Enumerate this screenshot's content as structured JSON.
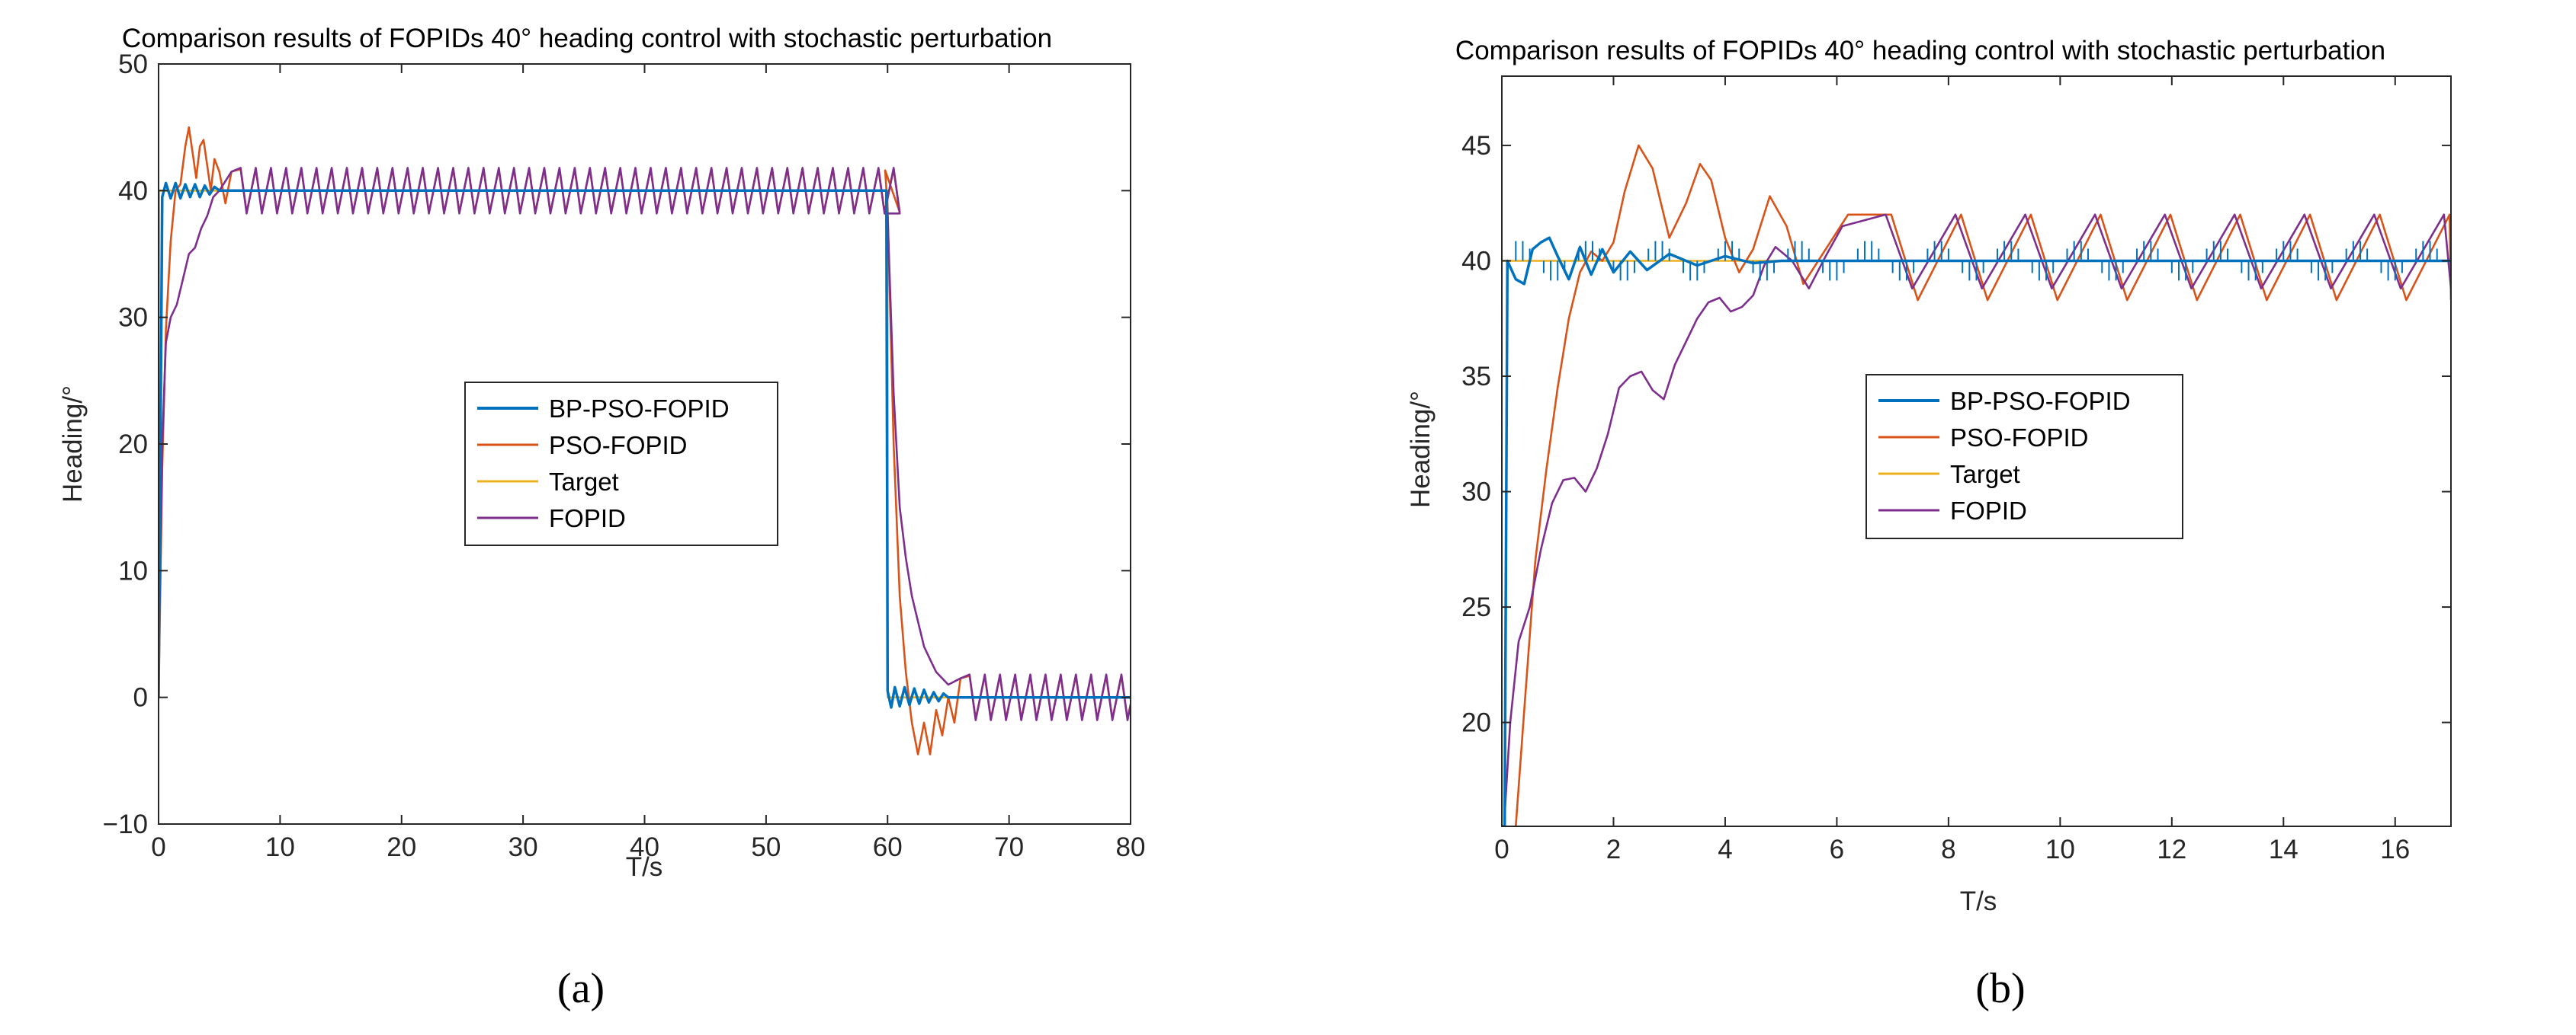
{
  "figure": {
    "panels": [
      "(a)",
      "(b)"
    ]
  },
  "colors": {
    "bp_pso_fopid": "#0072BD",
    "pso_fopid": "#D95319",
    "target": "#EDB120",
    "fopid": "#7E2F8E",
    "axis": "#262626",
    "grid": "#ffffff"
  },
  "chart_data": [
    {
      "type": "line",
      "panel_label": "a",
      "title": "Comparison results of FOPIDs 40° heading control with stochastic perturbation",
      "xlabel": "T/s",
      "ylabel": "Heading/°",
      "xlim": [
        0,
        80
      ],
      "ylim": [
        -10,
        50
      ],
      "xticks": [
        0,
        10,
        20,
        30,
        40,
        50,
        60,
        70,
        80
      ],
      "yticks": [
        -10,
        0,
        10,
        20,
        30,
        40,
        50
      ],
      "ytick_labels": [
        "−10",
        "0",
        "10",
        "20",
        "30",
        "40",
        "50"
      ],
      "grid": false,
      "legend_position": "center-right",
      "series": [
        {
          "name": "BP-PSO-FOPID",
          "color": "#0072BD",
          "x": [
            0,
            0.3,
            0.6,
            1.0,
            1.4,
            1.8,
            2.2,
            2.6,
            3.0,
            3.4,
            3.8,
            4.2,
            4.6,
            5.0,
            6.0,
            10,
            20,
            30,
            40,
            50,
            59.9,
            60.0,
            60.3,
            60.6,
            61.0,
            61.4,
            61.8,
            62.2,
            62.6,
            63.0,
            63.4,
            63.8,
            64.2,
            64.6,
            65.0,
            66,
            70,
            80
          ],
          "y": [
            0,
            39.5,
            40.6,
            39.4,
            40.6,
            39.4,
            40.5,
            39.5,
            40.5,
            39.5,
            40.4,
            39.7,
            40.3,
            40.0,
            40.0,
            40.0,
            40.0,
            40.0,
            40.0,
            40.0,
            40.0,
            0.5,
            -0.8,
            0.8,
            -0.7,
            0.8,
            -0.6,
            0.7,
            -0.5,
            0.6,
            -0.4,
            0.4,
            -0.3,
            0.3,
            0.0,
            0.0,
            0.0,
            0.0
          ]
        },
        {
          "name": "PSO-FOPID",
          "color": "#D95319",
          "x": [
            0,
            0.3,
            0.6,
            1.0,
            1.4,
            1.8,
            2.2,
            2.5,
            2.8,
            3.1,
            3.4,
            3.7,
            4.0,
            4.3,
            4.6,
            5.0,
            5.5,
            6.0,
            7,
            8,
            10,
            20,
            30,
            40,
            50,
            59.8,
            60.0,
            60.5,
            61.0,
            61.5,
            62.0,
            62.5,
            63.0,
            63.5,
            64.0,
            64.5,
            65.0,
            65.5,
            66.0,
            67,
            70,
            80
          ],
          "y": [
            0,
            18,
            29,
            36,
            40,
            40.5,
            43.5,
            45,
            43,
            41,
            43.5,
            44,
            42,
            40,
            42.5,
            41.5,
            39,
            41.5,
            39,
            41.5,
            38.6,
            41.6,
            38.6,
            41.6,
            38.6,
            41.6,
            38.6,
            20,
            8,
            2,
            -2,
            -4.5,
            -2,
            -4.5,
            -1,
            -3,
            0,
            -2,
            1.5,
            -1.5,
            1.8,
            -1.8
          ]
        },
        {
          "name": "Target",
          "color": "#EDB120",
          "x": [
            0,
            0.05,
            60,
            60.01,
            80
          ],
          "y": [
            0,
            40,
            40,
            0,
            0
          ]
        },
        {
          "name": "FOPID",
          "color": "#7E2F8E",
          "x": [
            0,
            0.3,
            0.6,
            1.0,
            1.5,
            2.0,
            2.5,
            3.0,
            3.5,
            4.0,
            4.5,
            5.0,
            6,
            8,
            10,
            20,
            30,
            40,
            50,
            59.8,
            60.0,
            60.5,
            61.0,
            61.5,
            62.0,
            62.5,
            63.0,
            63.5,
            64.0,
            65.0,
            66,
            70,
            80
          ],
          "y": [
            2,
            20,
            28,
            30,
            31,
            33,
            35,
            35.5,
            37,
            38,
            39.5,
            40,
            41.5,
            38.5,
            41.8,
            38.2,
            41.8,
            38.2,
            41.8,
            38.2,
            38.0,
            24,
            15,
            11,
            8,
            6,
            4,
            3,
            2,
            1,
            1.5,
            -1.5,
            1.5
          ]
        }
      ]
    },
    {
      "type": "line",
      "panel_label": "b",
      "title": "Comparison results of FOPIDs 40° heading control with stochastic perturbation",
      "xlabel": "T/s",
      "ylabel": "Heading/°",
      "xlim": [
        0,
        17
      ],
      "ylim": [
        15.5,
        48
      ],
      "xticks": [
        0,
        2,
        4,
        6,
        8,
        10,
        12,
        14,
        16
      ],
      "yticks": [
        20,
        25,
        30,
        35,
        40,
        45
      ],
      "ytick_labels": [
        "20",
        "25",
        "30",
        "35",
        "40",
        "45"
      ],
      "grid": false,
      "legend_position": "center-right",
      "series": [
        {
          "name": "BP-PSO-FOPID",
          "color": "#0072BD",
          "x": [
            0,
            0.05,
            0.1,
            0.25,
            0.4,
            0.55,
            0.7,
            0.85,
            1.0,
            1.2,
            1.4,
            1.6,
            1.8,
            2.0,
            2.3,
            2.6,
            3.0,
            3.5,
            4.0,
            4.5,
            5.0,
            17.0
          ],
          "y": [
            15.5,
            15.5,
            40.0,
            39.2,
            39.0,
            40.5,
            40.8,
            41.0,
            40.2,
            39.2,
            40.6,
            39.4,
            40.5,
            39.5,
            40.4,
            39.6,
            40.3,
            39.8,
            40.2,
            39.9,
            40.0,
            40.0
          ]
        },
        {
          "name": "PSO-FOPID",
          "color": "#D95319",
          "x": [
            0.25,
            0.4,
            0.6,
            0.8,
            1.0,
            1.2,
            1.4,
            1.6,
            1.8,
            2.0,
            2.2,
            2.45,
            2.7,
            3.0,
            3.3,
            3.55,
            3.75,
            4.0,
            4.25,
            4.5,
            4.8,
            5.1,
            5.4,
            5.8,
            6.2
          ],
          "y": [
            15.5,
            20.5,
            27,
            31,
            34.5,
            37.5,
            39.5,
            40.4,
            40.0,
            40.8,
            43.0,
            45.0,
            44.0,
            41.0,
            42.5,
            44.2,
            43.5,
            41.0,
            39.5,
            40.5,
            42.8,
            41.5,
            39.0,
            40.5,
            42.0
          ]
        },
        {
          "name": "Target",
          "color": "#EDB120",
          "x": [
            0,
            17
          ],
          "y": [
            40,
            40
          ]
        },
        {
          "name": "FOPID",
          "color": "#7E2F8E",
          "x": [
            0.05,
            0.15,
            0.3,
            0.5,
            0.7,
            0.9,
            1.1,
            1.3,
            1.5,
            1.7,
            1.9,
            2.1,
            2.3,
            2.5,
            2.7,
            2.9,
            3.1,
            3.3,
            3.5,
            3.7,
            3.9,
            4.1,
            4.3,
            4.5,
            4.7,
            4.9,
            5.2,
            5.5,
            5.8,
            6.1
          ],
          "y": [
            16,
            20,
            23.5,
            25,
            27.5,
            29.5,
            30.5,
            30.6,
            30.0,
            31.0,
            32.5,
            34.5,
            35.0,
            35.2,
            34.4,
            34.0,
            35.5,
            36.5,
            37.5,
            38.2,
            38.4,
            37.8,
            38.0,
            38.5,
            39.8,
            40.6,
            40.0,
            38.8,
            40.2,
            41.5
          ]
        }
      ],
      "oscillation": {
        "period_s": 1.25,
        "pso_fopid": {
          "start": 6.2,
          "min": 38.3,
          "max": 42.0
        },
        "fopid": {
          "start": 6.1,
          "min": 38.8,
          "max": 42.0
        }
      }
    }
  ]
}
